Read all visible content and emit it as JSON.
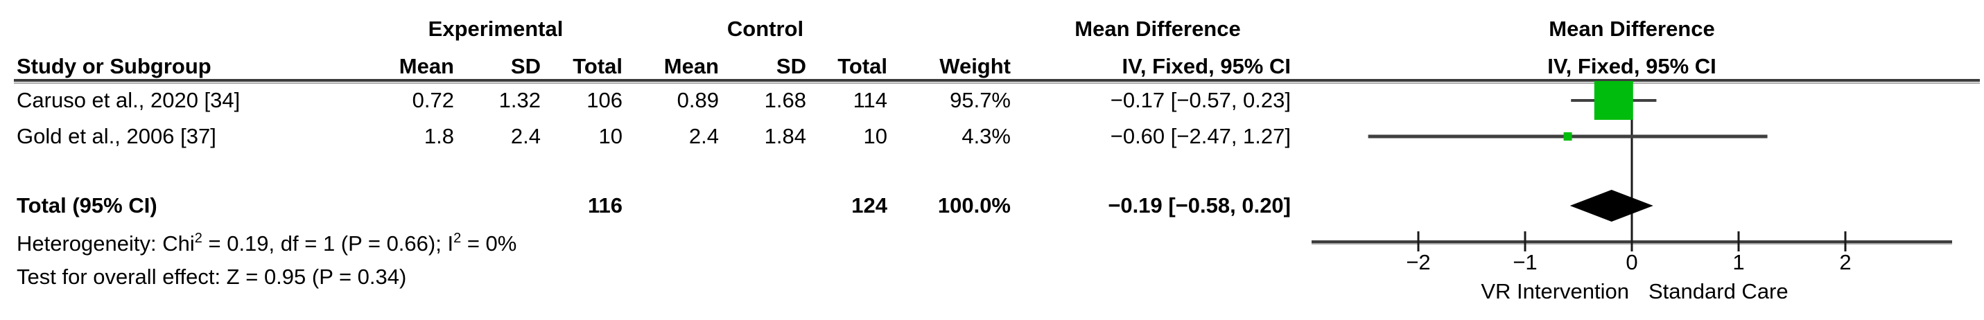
{
  "table": {
    "group_headers": {
      "experimental": "Experimental",
      "control": "Control",
      "mean_difference": "Mean Difference"
    },
    "columns": {
      "study": "Study or Subgroup",
      "mean": "Mean",
      "sd": "SD",
      "total": "Total",
      "weight": "Weight",
      "ci": "IV, Fixed, 95% CI"
    },
    "studies": [
      {
        "name": "Caruso et al., 2020 [34]",
        "exp_mean": "0.72",
        "exp_sd": "1.32",
        "exp_total": "106",
        "ctl_mean": "0.89",
        "ctl_sd": "1.68",
        "ctl_total": "114",
        "weight": "95.7%",
        "ci_text": "−0.17 [−0.57, 0.23]"
      },
      {
        "name": "Gold et al., 2006 [37]",
        "exp_mean": "1.8",
        "exp_sd": "2.4",
        "exp_total": "10",
        "ctl_mean": "2.4",
        "ctl_sd": "1.84",
        "ctl_total": "10",
        "weight": "4.3%",
        "ci_text": "−0.60 [−2.47, 1.27]"
      }
    ],
    "total_row": {
      "label": "Total (95% CI)",
      "exp_total": "116",
      "ctl_total": "124",
      "weight": "100.0%",
      "ci_text": "−0.19 [−0.58, 0.20]"
    },
    "heterogeneity": {
      "p1": "Heterogeneity: Chi",
      "s1": "2",
      "p2": " = 0.19, df = 1 (P = 0.66); I",
      "s2": "2",
      "p3": " = 0%"
    },
    "overall_effect": "Test for overall effect: Z = 0.95 (P = 0.34)"
  },
  "plot": {
    "header_line1": "Mean Difference",
    "header_line2": "IV, Fixed, 95% CI",
    "left_label": "VR Intervention",
    "right_label": "Standard Care",
    "ticks": [
      {
        "value": -2,
        "label": "−2"
      },
      {
        "value": -1,
        "label": "−1"
      },
      {
        "value": 0,
        "label": "0"
      },
      {
        "value": 1,
        "label": "1"
      },
      {
        "value": 2,
        "label": "2"
      }
    ],
    "marker_color": "#00bc0c",
    "line_color": "#404040",
    "axis_color": "#3d3d3d",
    "diamond_color": "#000000"
  },
  "chart_data": {
    "type": "forest",
    "effect_measure": "Mean Difference, IV, Fixed, 95% CI",
    "axis_range": [
      -3,
      3
    ],
    "axis_ticks": [
      -2,
      -1,
      0,
      1,
      2
    ],
    "studies": [
      {
        "name": "Caruso et al., 2020 [34]",
        "md": -0.17,
        "ci_low": -0.57,
        "ci_high": 0.23,
        "weight_pct": 95.7
      },
      {
        "name": "Gold et al., 2006 [37]",
        "md": -0.6,
        "ci_low": -2.47,
        "ci_high": 1.27,
        "weight_pct": 4.3
      }
    ],
    "total": {
      "md": -0.19,
      "ci_low": -0.58,
      "ci_high": 0.2,
      "weight_pct": 100.0,
      "exp_total": 116,
      "ctl_total": 124
    },
    "heterogeneity": {
      "chi2": 0.19,
      "df": 1,
      "p": 0.66,
      "i2_pct": 0
    },
    "overall_effect": {
      "z": 0.95,
      "p": 0.34
    },
    "left_direction_label": "VR Intervention",
    "right_direction_label": "Standard Care"
  }
}
